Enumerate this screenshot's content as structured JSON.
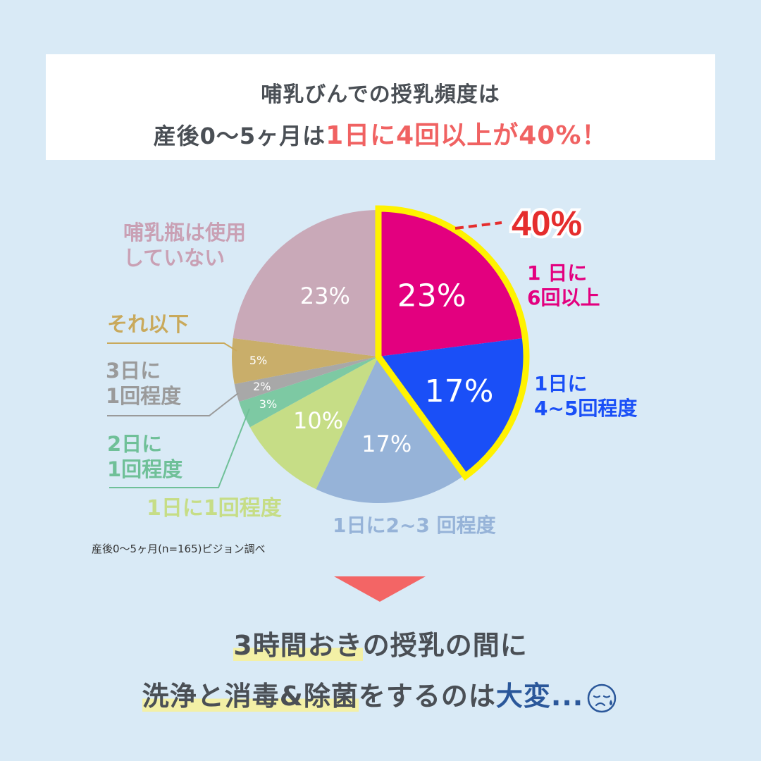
{
  "header": {
    "line1": "哺乳びんでの授乳頻度は",
    "line2_prefix": "産後0〜5ヶ月は",
    "line2_accent": "1日に4回以上が40%！",
    "accent_color": "#f06262"
  },
  "callout": {
    "value": "40%",
    "color": "#e52d2d"
  },
  "chart_data": {
    "type": "pie",
    "title": "哺乳びんでの授乳頻度（産後0〜5ヶ月）",
    "start_angle_deg": 0,
    "direction": "clockwise",
    "highlight": {
      "slices": [
        "1日に6回以上",
        "1日に4~5回程度"
      ],
      "total": "40%",
      "outline_color": "#fff200"
    },
    "slices": [
      {
        "label": "1日に6回以上",
        "value": 23,
        "display": "23%",
        "color": "#e3007f",
        "label_color": "#e3007f"
      },
      {
        "label": "1日に4~5回程度",
        "value": 17,
        "display": "17%",
        "color": "#1a4ff7",
        "label_color": "#1a4ff7"
      },
      {
        "label": "1日に2~3回程度",
        "value": 17,
        "display": "17%",
        "color": "#96b3d8",
        "label_color": "#96b3d8"
      },
      {
        "label": "1日に1回程度",
        "value": 10,
        "display": "10%",
        "color": "#c6dd86",
        "label_color": "#c6dd86"
      },
      {
        "label": "2日に1回程度",
        "value": 3,
        "display": "3%",
        "color": "#7dc9a3",
        "label_color": "#6fc098"
      },
      {
        "label": "3日に1回程度",
        "value": 2,
        "display": "2%",
        "color": "#a8a8a8",
        "label_color": "#9a9a9a"
      },
      {
        "label": "それ以下",
        "value": 5,
        "display": "5%",
        "color": "#c9ae6a",
        "label_color": "#c9a95b"
      },
      {
        "label": "哺乳瓶は使用していない",
        "value": 23,
        "display": "23%",
        "color": "#c9a9b8",
        "label_color": "#c9a0b4"
      }
    ]
  },
  "labels": {
    "six_plus_l1": "1 日に",
    "six_plus_l2": "6回以上",
    "four_five_l1": "1日に",
    "four_five_l2": "4~5回程度",
    "two_three": "1日に2~3 回程度",
    "once_day": "1日に1回程度",
    "two_days_l1": "2日に",
    "two_days_l2": "1回程度",
    "three_days_l1": "3日に",
    "three_days_l2": "1回程度",
    "less": "それ以下",
    "not_used_l1": "哺乳瓶は使用",
    "not_used_l2": "していない"
  },
  "source_note": "産後0〜5ヶ月(n=165)ピジョン調べ",
  "bottom": {
    "line1_hl": "3時間おき",
    "line1_rest": "の授乳の間に",
    "line2_hl": "洗浄と消毒&除菌",
    "line2_mid": "をするのは",
    "line2_blue": "大変...",
    "icon": "sad-face-sweat-icon"
  }
}
